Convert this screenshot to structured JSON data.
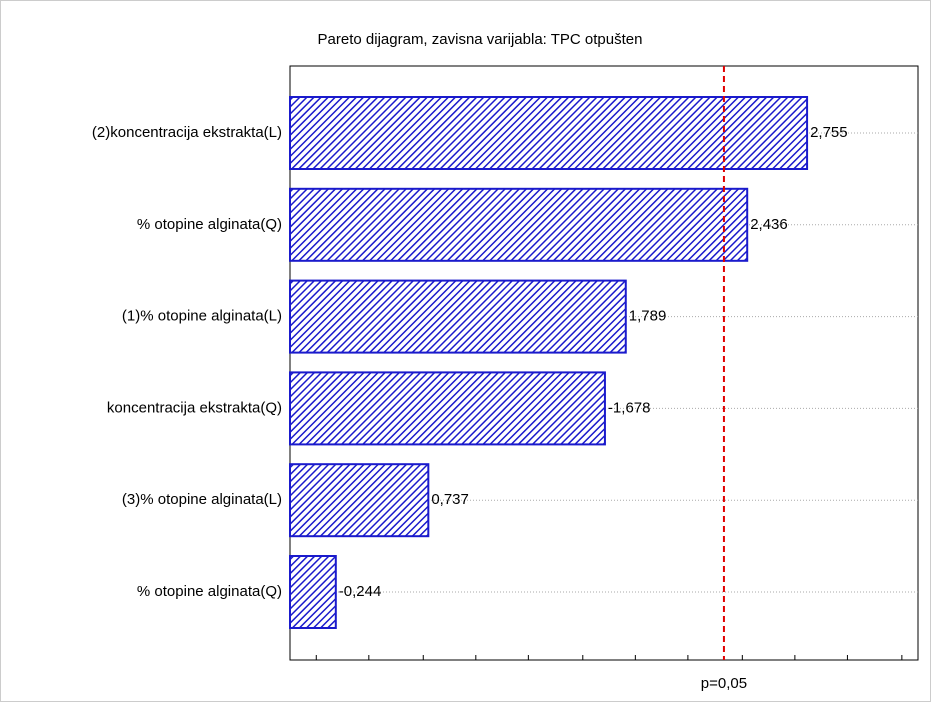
{
  "chart_data": {
    "type": "pareto",
    "title": "Pareto dijagram, zavisna varijabla: TPC otpušten",
    "categories": [
      "(2)koncentracija ekstrakta(L)",
      "% otopine alginata(Q)",
      "(1)% otopine alginata(L)",
      "koncentracija ekstrakta(Q)",
      "(3)% otopine alginata(L)",
      "% otopine alginata(Q)"
    ],
    "values": [
      2.755,
      2.436,
      1.789,
      -1.678,
      0.737,
      -0.244
    ],
    "value_labels": [
      "2,755",
      "2,436",
      "1,789",
      "-1,678",
      "0,737",
      "-0,244"
    ],
    "color": "#1a1acc",
    "xlim": [
      0,
      3.346
    ],
    "xticks": [
      0.14,
      0.42,
      0.71,
      0.99,
      1.27,
      1.56,
      1.84,
      2.12,
      2.41,
      2.69,
      2.97,
      3.26
    ],
    "threshold": {
      "value": 2.312,
      "label": "p=0,05",
      "color": "#e00000"
    },
    "grid": true
  }
}
